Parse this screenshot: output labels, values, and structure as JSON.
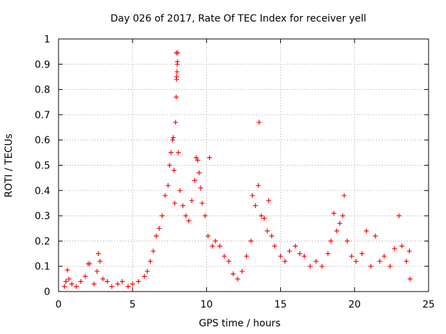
{
  "chart_data": {
    "type": "scatter",
    "title": "Day 026 of 2017, Rate Of TEC Index for receiver yell",
    "xlabel": "GPS time / hours",
    "ylabel": "ROTI / TECUs",
    "xlim": [
      0,
      25
    ],
    "ylim": [
      0,
      1
    ],
    "x_ticks": [
      0,
      5,
      10,
      15,
      20,
      25
    ],
    "x_tick_labels": [
      "0",
      "5",
      "10",
      "15",
      "20",
      "25"
    ],
    "y_ticks": [
      0,
      0.1,
      0.2,
      0.3,
      0.4,
      0.5,
      0.6,
      0.7,
      0.8,
      0.9,
      1
    ],
    "y_tick_labels": [
      "0",
      "0.1",
      "0.2",
      "0.3",
      "0.4",
      "0.5",
      "0.6",
      "0.7",
      "0.8",
      "0.9",
      "1"
    ],
    "grid": true,
    "marker": "+",
    "series": [
      {
        "name": "ROTI",
        "color": "#ff0000",
        "points": [
          [
            0.4,
            0.02
          ],
          [
            0.5,
            0.04
          ],
          [
            0.6,
            0.085
          ],
          [
            0.7,
            0.05
          ],
          [
            0.9,
            0.03
          ],
          [
            1.2,
            0.02
          ],
          [
            1.5,
            0.04
          ],
          [
            1.8,
            0.06
          ],
          [
            2.0,
            0.11
          ],
          [
            2.1,
            0.11
          ],
          [
            2.4,
            0.03
          ],
          [
            2.6,
            0.08
          ],
          [
            2.7,
            0.15
          ],
          [
            2.8,
            0.12
          ],
          [
            3.0,
            0.05
          ],
          [
            3.3,
            0.04
          ],
          [
            3.6,
            0.02
          ],
          [
            4.0,
            0.03
          ],
          [
            4.3,
            0.04
          ],
          [
            4.7,
            0.02
          ],
          [
            5.0,
            0.03
          ],
          [
            5.4,
            0.04
          ],
          [
            5.8,
            0.06
          ],
          [
            6.0,
            0.08
          ],
          [
            6.2,
            0.12
          ],
          [
            6.4,
            0.16
          ],
          [
            6.6,
            0.22
          ],
          [
            6.8,
            0.25
          ],
          [
            7.0,
            0.3
          ],
          [
            7.2,
            0.38
          ],
          [
            7.4,
            0.42
          ],
          [
            7.5,
            0.5
          ],
          [
            7.6,
            0.55
          ],
          [
            7.7,
            0.6
          ],
          [
            7.75,
            0.61
          ],
          [
            7.8,
            0.48
          ],
          [
            7.85,
            0.35
          ],
          [
            7.9,
            0.67
          ],
          [
            7.95,
            0.77
          ],
          [
            7.97,
            0.84
          ],
          [
            7.98,
            0.85
          ],
          [
            8.0,
            0.87
          ],
          [
            8.02,
            0.9
          ],
          [
            8.03,
            0.91
          ],
          [
            8.05,
            0.945
          ],
          [
            7.96,
            0.945
          ],
          [
            8.1,
            0.55
          ],
          [
            8.2,
            0.4
          ],
          [
            8.4,
            0.34
          ],
          [
            8.6,
            0.3
          ],
          [
            8.8,
            0.28
          ],
          [
            9.0,
            0.36
          ],
          [
            9.2,
            0.44
          ],
          [
            9.3,
            0.53
          ],
          [
            9.4,
            0.52
          ],
          [
            9.5,
            0.47
          ],
          [
            9.6,
            0.41
          ],
          [
            9.7,
            0.35
          ],
          [
            9.9,
            0.3
          ],
          [
            10.1,
            0.22
          ],
          [
            10.2,
            0.53
          ],
          [
            10.4,
            0.18
          ],
          [
            10.6,
            0.2
          ],
          [
            10.9,
            0.18
          ],
          [
            11.2,
            0.14
          ],
          [
            11.5,
            0.12
          ],
          [
            11.8,
            0.07
          ],
          [
            12.1,
            0.05
          ],
          [
            12.4,
            0.08
          ],
          [
            12.7,
            0.14
          ],
          [
            13.0,
            0.2
          ],
          [
            13.1,
            0.38
          ],
          [
            13.3,
            0.34
          ],
          [
            13.5,
            0.42
          ],
          [
            13.55,
            0.67
          ],
          [
            13.7,
            0.3
          ],
          [
            13.9,
            0.29
          ],
          [
            14.1,
            0.24
          ],
          [
            14.2,
            0.36
          ],
          [
            14.4,
            0.22
          ],
          [
            14.6,
            0.18
          ],
          [
            15.0,
            0.14
          ],
          [
            15.3,
            0.12
          ],
          [
            15.6,
            0.16
          ],
          [
            16.0,
            0.18
          ],
          [
            16.3,
            0.15
          ],
          [
            16.6,
            0.14
          ],
          [
            17.0,
            0.1
          ],
          [
            17.4,
            0.12
          ],
          [
            17.8,
            0.1
          ],
          [
            18.2,
            0.15
          ],
          [
            18.4,
            0.2
          ],
          [
            18.6,
            0.31
          ],
          [
            18.8,
            0.24
          ],
          [
            19.0,
            0.27
          ],
          [
            19.2,
            0.3
          ],
          [
            19.3,
            0.38
          ],
          [
            19.5,
            0.2
          ],
          [
            19.8,
            0.14
          ],
          [
            20.1,
            0.12
          ],
          [
            20.5,
            0.15
          ],
          [
            20.8,
            0.24
          ],
          [
            21.1,
            0.1
          ],
          [
            21.4,
            0.22
          ],
          [
            21.7,
            0.12
          ],
          [
            22.0,
            0.14
          ],
          [
            22.4,
            0.1
          ],
          [
            22.7,
            0.17
          ],
          [
            23.0,
            0.3
          ],
          [
            23.2,
            0.18
          ],
          [
            23.5,
            0.12
          ],
          [
            23.7,
            0.16
          ],
          [
            23.75,
            0.05
          ]
        ]
      }
    ]
  }
}
